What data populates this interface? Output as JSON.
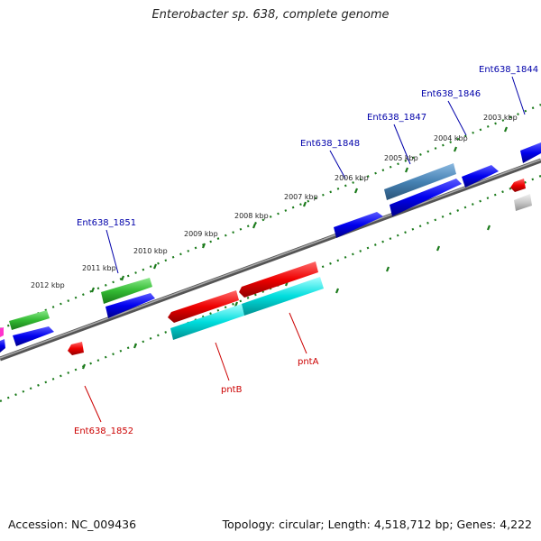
{
  "title": "Enterobacter sp. 638, complete genome",
  "footer": {
    "accession": "Accession: NC_009436",
    "summary": "Topology: circular; Length: 4,518,712 bp; Genes: 4,222"
  },
  "scale_labels": [
    "2012 kbp",
    "2011 kbp",
    "2010 kbp",
    "2009 kbp",
    "2008 kbp",
    "2007 kbp",
    "2006 kbp",
    "2005 kbp",
    "2004 kbp",
    "2003 kbp"
  ],
  "gene_labels_top": [
    "Ent638_1851",
    "Ent638_1848",
    "Ent638_1847",
    "Ent638_1846",
    "Ent638_1844"
  ],
  "gene_labels_bottom": [
    "Ent638_1852",
    "pntB",
    "pntA"
  ],
  "colors": {
    "label_forward": "#0000aa",
    "label_reverse": "#cc0000",
    "tick_dots": "#1a7a1a",
    "backbone": "#777777"
  }
}
